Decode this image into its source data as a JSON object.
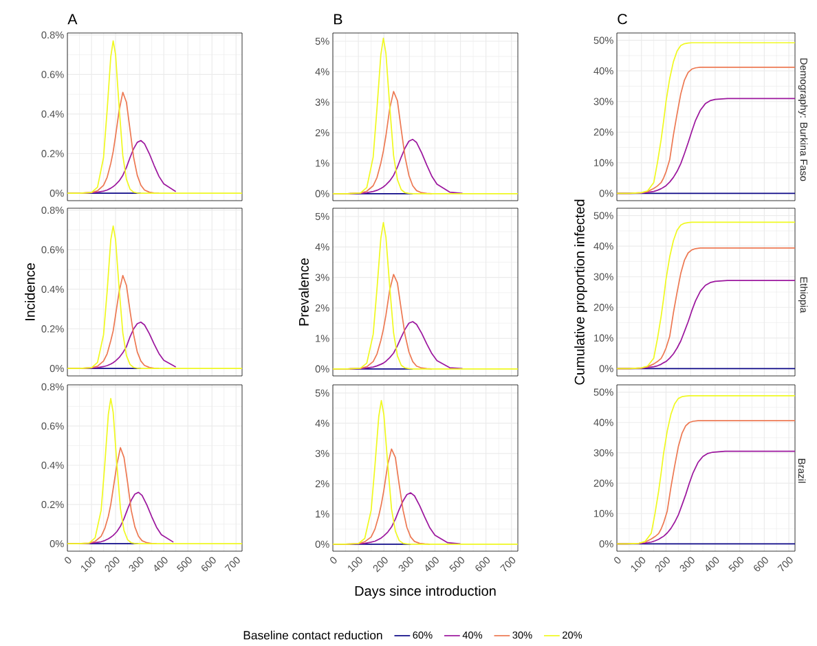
{
  "chart_data": [
    {
      "type": "line",
      "title": "A",
      "x": [
        0,
        50,
        100,
        125,
        150,
        165,
        180,
        190,
        200,
        215,
        230,
        245,
        260,
        275,
        290,
        305,
        320,
        340,
        360,
        380,
        400,
        450,
        500,
        600,
        725
      ],
      "xlim": [
        0,
        725
      ],
      "xticks": [
        0,
        100,
        200,
        300,
        400,
        500,
        600,
        700
      ],
      "ylim": [
        -0.038,
        0.81
      ],
      "yticks": [
        {
          "value": 0,
          "label": "0%"
        },
        {
          "value": 0.2,
          "label": "0.2%"
        },
        {
          "value": 0.4,
          "label": "0.4%"
        },
        {
          "value": 0.6,
          "label": "0.6%"
        },
        {
          "value": 0.8,
          "label": "0.8%"
        }
      ],
      "grid": true,
      "tick_labels": "y",
      "series": [
        {
          "color": "#0d0887",
          "values": [
            0,
            0,
            0,
            0,
            0,
            0,
            0,
            0,
            0,
            0,
            0,
            0,
            0,
            0,
            0,
            0,
            null,
            null,
            null,
            null,
            null,
            null,
            null,
            null,
            null
          ]
        },
        {
          "color": "#9c179e",
          "values": [
            0,
            0,
            0.002,
            0.005,
            0.01,
            0.016,
            0.025,
            0.033,
            0.043,
            0.062,
            0.09,
            0.13,
            0.18,
            0.225,
            0.257,
            0.266,
            0.25,
            0.2,
            0.14,
            0.085,
            0.047,
            0.008,
            null,
            null,
            null
          ]
        },
        {
          "color": "#ed7953",
          "values": [
            0,
            0,
            0.003,
            0.012,
            0.04,
            0.08,
            0.15,
            0.21,
            0.29,
            0.42,
            0.51,
            0.46,
            0.32,
            0.18,
            0.09,
            0.04,
            0.016,
            0.005,
            0.001,
            0,
            null,
            null,
            null,
            null,
            null
          ]
        },
        {
          "color": "#f0f921",
          "values": [
            0,
            0,
            0.003,
            0.03,
            0.18,
            0.42,
            0.69,
            0.77,
            0.7,
            0.43,
            0.19,
            0.07,
            0.02,
            0.005,
            0.001,
            0,
            0,
            0,
            0,
            0,
            0,
            0,
            0,
            0,
            0
          ]
        }
      ]
    },
    {
      "type": "line",
      "title": "B",
      "x": [
        0,
        58,
        108,
        133,
        158,
        173,
        188,
        198,
        208,
        223,
        238,
        253,
        268,
        283,
        298,
        313,
        328,
        348,
        368,
        388,
        408,
        458,
        508,
        608,
        725
      ],
      "xlim": [
        0,
        725
      ],
      "xticks": [
        0,
        100,
        200,
        300,
        400,
        500,
        600,
        700
      ],
      "ylim": [
        -0.23,
        5.27
      ],
      "yticks": [
        {
          "value": 0,
          "label": "0%"
        },
        {
          "value": 1,
          "label": "1%"
        },
        {
          "value": 2,
          "label": "2%"
        },
        {
          "value": 3,
          "label": "3%"
        },
        {
          "value": 4,
          "label": "4%"
        },
        {
          "value": 5,
          "label": "5%"
        }
      ],
      "grid": true,
      "tick_labels": "y",
      "series": [
        {
          "color": "#0d0887",
          "values": [
            0,
            0,
            0,
            0,
            0,
            0,
            0,
            0,
            0,
            0,
            0,
            0,
            0,
            0,
            0,
            0,
            null,
            null,
            null,
            null,
            null,
            null,
            null,
            null,
            null
          ]
        },
        {
          "color": "#9c179e",
          "values": [
            0,
            0,
            0.01,
            0.03,
            0.07,
            0.11,
            0.17,
            0.22,
            0.29,
            0.42,
            0.6,
            0.87,
            1.2,
            1.5,
            1.72,
            1.78,
            1.68,
            1.34,
            0.94,
            0.57,
            0.31,
            0.05,
            0.01,
            null,
            null
          ]
        },
        {
          "color": "#ed7953",
          "values": [
            0,
            0,
            0.02,
            0.08,
            0.26,
            0.53,
            1.0,
            1.4,
            1.9,
            2.8,
            3.35,
            3.05,
            2.1,
            1.2,
            0.6,
            0.26,
            0.1,
            0.03,
            0.01,
            0,
            null,
            null,
            null,
            null,
            null
          ]
        },
        {
          "color": "#f0f921",
          "values": [
            0,
            0,
            0.02,
            0.2,
            1.2,
            2.8,
            4.55,
            5.1,
            4.6,
            2.85,
            1.25,
            0.46,
            0.13,
            0.03,
            0.01,
            0,
            0,
            0,
            0,
            0,
            0,
            0,
            0,
            0,
            0
          ]
        }
      ]
    },
    {
      "type": "line",
      "title": "C",
      "y2label": "Demography: Burkina Faso",
      "x": [
        0,
        50,
        100,
        125,
        150,
        165,
        180,
        190,
        200,
        215,
        230,
        245,
        260,
        275,
        290,
        305,
        320,
        340,
        360,
        380,
        400,
        450,
        500,
        600,
        725
      ],
      "xlim": [
        0,
        725
      ],
      "xticks": [
        0,
        100,
        200,
        300,
        400,
        500,
        600,
        700
      ],
      "ylim": [
        -2.4,
        52.4
      ],
      "yticks": [
        {
          "value": 0,
          "label": "0%"
        },
        {
          "value": 10,
          "label": "10%"
        },
        {
          "value": 20,
          "label": "20%"
        },
        {
          "value": 30,
          "label": "30%"
        },
        {
          "value": 40,
          "label": "40%"
        },
        {
          "value": 50,
          "label": "50%"
        }
      ],
      "grid": true,
      "tick_labels": "y",
      "series": [
        {
          "color": "#0d0887",
          "values": [
            0,
            0,
            0,
            0,
            0,
            0,
            0,
            0,
            0,
            0,
            0,
            0,
            0,
            0,
            0,
            0,
            0,
            0,
            0,
            0,
            0,
            0,
            0,
            0,
            0
          ]
        },
        {
          "color": "#9c179e",
          "values": [
            0,
            0,
            0.1,
            0.3,
            0.6,
            1,
            1.5,
            2,
            2.5,
            3.7,
            5.2,
            7.2,
            9.7,
            13,
            16.5,
            20.3,
            23.8,
            27.2,
            29.3,
            30.3,
            30.7,
            31,
            31,
            31,
            31
          ]
        },
        {
          "color": "#ed7953",
          "values": [
            0,
            0,
            0.2,
            0.6,
            1.6,
            2.4,
            3.5,
            5,
            7,
            11,
            19,
            26,
            32.5,
            37,
            39.5,
            40.6,
            41,
            41.2,
            41.2,
            41.2,
            41.2,
            41.2,
            41.2,
            41.2,
            41.2
          ]
        },
        {
          "color": "#f0f921",
          "values": [
            0,
            0,
            0.2,
            0.8,
            3.5,
            10,
            17.5,
            23.5,
            30,
            37.5,
            43,
            46.5,
            48.3,
            48.9,
            49.1,
            49.2,
            49.2,
            49.2,
            49.2,
            49.2,
            49.2,
            49.2,
            49.2,
            49.2,
            49.2
          ]
        }
      ]
    },
    {
      "type": "line",
      "ylabel": "Incidence",
      "x": [
        0,
        50,
        100,
        125,
        150,
        165,
        180,
        190,
        200,
        215,
        230,
        245,
        260,
        275,
        290,
        305,
        320,
        340,
        360,
        380,
        400,
        450,
        500,
        600,
        725
      ],
      "xlim": [
        0,
        725
      ],
      "xticks": [
        0,
        100,
        200,
        300,
        400,
        500,
        600,
        700
      ],
      "ylim": [
        -0.038,
        0.81
      ],
      "yticks": [
        {
          "value": 0,
          "label": "0%"
        },
        {
          "value": 0.2,
          "label": "0.2%"
        },
        {
          "value": 0.4,
          "label": "0.4%"
        },
        {
          "value": 0.6,
          "label": "0.6%"
        },
        {
          "value": 0.8,
          "label": "0.8%"
        }
      ],
      "grid": true,
      "tick_labels": "y",
      "series": [
        {
          "color": "#0d0887",
          "values": [
            0,
            0,
            0,
            0,
            0,
            0,
            0,
            0,
            0,
            0,
            0,
            0,
            0,
            0,
            0,
            0,
            null,
            null,
            null,
            null,
            null,
            null,
            null,
            null,
            null
          ]
        },
        {
          "color": "#9c179e",
          "values": [
            0,
            0,
            0.002,
            0.004,
            0.009,
            0.014,
            0.022,
            0.029,
            0.038,
            0.055,
            0.079,
            0.11,
            0.16,
            0.2,
            0.226,
            0.234,
            0.22,
            0.176,
            0.123,
            0.075,
            0.041,
            0.007,
            null,
            null,
            null
          ]
        },
        {
          "color": "#ed7953",
          "values": [
            0,
            0,
            0.003,
            0.011,
            0.037,
            0.074,
            0.14,
            0.19,
            0.27,
            0.39,
            0.47,
            0.42,
            0.29,
            0.17,
            0.083,
            0.037,
            0.015,
            0.005,
            0.001,
            0,
            null,
            null,
            null,
            null,
            null
          ]
        },
        {
          "color": "#f0f921",
          "values": [
            0,
            0,
            0.003,
            0.03,
            0.17,
            0.39,
            0.65,
            0.72,
            0.65,
            0.4,
            0.18,
            0.065,
            0.02,
            0.005,
            0.001,
            0,
            0,
            0,
            0,
            0,
            0,
            0,
            0,
            0,
            0
          ]
        }
      ]
    },
    {
      "type": "line",
      "ylabel": "Prevalence",
      "x": [
        0,
        58,
        108,
        133,
        158,
        173,
        188,
        198,
        208,
        223,
        238,
        253,
        268,
        283,
        298,
        313,
        328,
        348,
        368,
        388,
        408,
        458,
        508,
        608,
        725
      ],
      "xlim": [
        0,
        725
      ],
      "xticks": [
        0,
        100,
        200,
        300,
        400,
        500,
        600,
        700
      ],
      "ylim": [
        -0.23,
        5.27
      ],
      "yticks": [
        {
          "value": 0,
          "label": "0%"
        },
        {
          "value": 1,
          "label": "1%"
        },
        {
          "value": 2,
          "label": "2%"
        },
        {
          "value": 3,
          "label": "3%"
        },
        {
          "value": 4,
          "label": "4%"
        },
        {
          "value": 5,
          "label": "5%"
        }
      ],
      "grid": true,
      "tick_labels": "y",
      "series": [
        {
          "color": "#0d0887",
          "values": [
            0,
            0,
            0,
            0,
            0,
            0,
            0,
            0,
            0,
            0,
            0,
            0,
            0,
            0,
            0,
            0,
            null,
            null,
            null,
            null,
            null,
            null,
            null,
            null,
            null
          ]
        },
        {
          "color": "#9c179e",
          "values": [
            0,
            0,
            0.01,
            0.03,
            0.06,
            0.1,
            0.15,
            0.19,
            0.25,
            0.37,
            0.52,
            0.76,
            1.04,
            1.3,
            1.5,
            1.55,
            1.46,
            1.17,
            0.82,
            0.5,
            0.27,
            0.04,
            0.01,
            null,
            null
          ]
        },
        {
          "color": "#ed7953",
          "values": [
            0,
            0,
            0.02,
            0.07,
            0.24,
            0.49,
            0.93,
            1.3,
            1.76,
            2.6,
            3.1,
            2.82,
            1.94,
            1.11,
            0.56,
            0.24,
            0.09,
            0.03,
            0.01,
            0,
            null,
            null,
            null,
            null,
            null
          ]
        },
        {
          "color": "#f0f921",
          "values": [
            0,
            0,
            0.02,
            0.19,
            1.13,
            2.63,
            4.28,
            4.8,
            4.32,
            2.68,
            1.18,
            0.43,
            0.12,
            0.03,
            0.01,
            0,
            0,
            0,
            0,
            0,
            0,
            0,
            0,
            0,
            0
          ]
        }
      ]
    },
    {
      "type": "line",
      "ylabel": "Cumulative proportion infected",
      "y2label": "Ethiopia",
      "x": [
        0,
        50,
        100,
        125,
        150,
        165,
        180,
        190,
        200,
        215,
        230,
        245,
        260,
        275,
        290,
        305,
        320,
        340,
        360,
        380,
        400,
        450,
        500,
        600,
        725
      ],
      "xlim": [
        0,
        725
      ],
      "xticks": [
        0,
        100,
        200,
        300,
        400,
        500,
        600,
        700
      ],
      "ylim": [
        -2.4,
        52.4
      ],
      "yticks": [
        {
          "value": 0,
          "label": "0%"
        },
        {
          "value": 10,
          "label": "10%"
        },
        {
          "value": 20,
          "label": "20%"
        },
        {
          "value": 30,
          "label": "30%"
        },
        {
          "value": 40,
          "label": "40%"
        },
        {
          "value": 50,
          "label": "50%"
        }
      ],
      "grid": true,
      "tick_labels": "y",
      "series": [
        {
          "color": "#0d0887",
          "values": [
            0,
            0,
            0,
            0,
            0,
            0,
            0,
            0,
            0,
            0,
            0,
            0,
            0,
            0,
            0,
            0,
            0,
            0,
            0,
            0,
            0,
            0,
            0,
            0,
            0
          ]
        },
        {
          "color": "#9c179e",
          "values": [
            0,
            0,
            0.1,
            0.3,
            0.6,
            0.9,
            1.4,
            1.9,
            2.3,
            3.4,
            4.8,
            6.7,
            9,
            12.1,
            15.3,
            18.9,
            22.1,
            25.3,
            27.2,
            28.1,
            28.5,
            28.8,
            28.8,
            28.8,
            28.8
          ]
        },
        {
          "color": "#ed7953",
          "values": [
            0,
            0,
            0.2,
            0.6,
            1.5,
            2.3,
            3.3,
            4.8,
            6.7,
            10.5,
            18.2,
            24.9,
            31.1,
            35.4,
            37.8,
            38.8,
            39.2,
            39.4,
            39.4,
            39.4,
            39.4,
            39.4,
            39.4,
            39.4,
            39.4
          ]
        },
        {
          "color": "#f0f921",
          "values": [
            0,
            0,
            0.2,
            0.8,
            3.4,
            9.7,
            17,
            22.8,
            29.2,
            36.5,
            41.8,
            45.2,
            46.9,
            47.5,
            47.7,
            47.8,
            47.8,
            47.8,
            47.8,
            47.8,
            47.8,
            47.8,
            47.8,
            47.8,
            47.8
          ]
        }
      ]
    },
    {
      "type": "line",
      "x": [
        0,
        40,
        90,
        115,
        140,
        155,
        170,
        180,
        190,
        205,
        220,
        235,
        250,
        265,
        280,
        295,
        310,
        330,
        350,
        370,
        390,
        440,
        490,
        590,
        725
      ],
      "xlim": [
        0,
        725
      ],
      "xticks": [
        0,
        100,
        200,
        300,
        400,
        500,
        600,
        700
      ],
      "ylim": [
        -0.038,
        0.81
      ],
      "yticks": [
        {
          "value": 0,
          "label": "0%"
        },
        {
          "value": 0.2,
          "label": "0.2%"
        },
        {
          "value": 0.4,
          "label": "0.4%"
        },
        {
          "value": 0.6,
          "label": "0.6%"
        },
        {
          "value": 0.8,
          "label": "0.8%"
        }
      ],
      "grid": true,
      "series": [
        {
          "color": "#0d0887",
          "values": [
            0,
            0,
            0,
            0,
            0,
            0,
            0,
            0,
            0,
            0,
            0,
            0,
            0,
            0,
            0,
            0,
            null,
            null,
            null,
            null,
            null,
            null,
            null,
            null,
            null
          ]
        },
        {
          "color": "#9c179e",
          "values": [
            0,
            0,
            0.002,
            0.005,
            0.01,
            0.016,
            0.025,
            0.033,
            0.042,
            0.061,
            0.089,
            0.128,
            0.177,
            0.222,
            0.253,
            0.262,
            0.246,
            0.197,
            0.138,
            0.084,
            0.046,
            0.008,
            null,
            null,
            null
          ]
        },
        {
          "color": "#ed7953",
          "values": [
            0,
            0,
            0.003,
            0.012,
            0.038,
            0.077,
            0.14,
            0.2,
            0.28,
            0.4,
            0.49,
            0.44,
            0.31,
            0.17,
            0.086,
            0.038,
            0.015,
            0.005,
            0.001,
            0,
            null,
            null,
            null,
            null,
            null
          ]
        },
        {
          "color": "#f0f921",
          "values": [
            0,
            0,
            0.003,
            0.03,
            0.17,
            0.4,
            0.66,
            0.74,
            0.67,
            0.41,
            0.18,
            0.067,
            0.02,
            0.005,
            0.001,
            0,
            0,
            0,
            0,
            0,
            0,
            0,
            0,
            0,
            0
          ]
        }
      ]
    },
    {
      "type": "line",
      "xlabel": "Days since introduction",
      "x": [
        0,
        50,
        100,
        125,
        150,
        165,
        180,
        190,
        200,
        215,
        230,
        245,
        260,
        275,
        290,
        305,
        320,
        340,
        360,
        380,
        400,
        450,
        500,
        600,
        725
      ],
      "xlim": [
        0,
        725
      ],
      "xticks": [
        0,
        100,
        200,
        300,
        400,
        500,
        600,
        700
      ],
      "ylim": [
        -0.23,
        5.27
      ],
      "yticks": [
        {
          "value": 0,
          "label": "0%"
        },
        {
          "value": 1,
          "label": "1%"
        },
        {
          "value": 2,
          "label": "2%"
        },
        {
          "value": 3,
          "label": "3%"
        },
        {
          "value": 4,
          "label": "4%"
        },
        {
          "value": 5,
          "label": "5%"
        }
      ],
      "grid": true,
      "series": [
        {
          "color": "#0d0887",
          "values": [
            0,
            0,
            0,
            0,
            0,
            0,
            0,
            0,
            0,
            0,
            0,
            0,
            0,
            0,
            0,
            0,
            null,
            null,
            null,
            null,
            null,
            null,
            null,
            null,
            null
          ]
        },
        {
          "color": "#9c179e",
          "values": [
            0,
            0,
            0.01,
            0.03,
            0.07,
            0.1,
            0.16,
            0.21,
            0.28,
            0.4,
            0.57,
            0.83,
            1.15,
            1.43,
            1.64,
            1.7,
            1.6,
            1.28,
            0.9,
            0.54,
            0.3,
            0.05,
            0.01,
            null,
            null
          ]
        },
        {
          "color": "#ed7953",
          "values": [
            0,
            0,
            0.02,
            0.08,
            0.24,
            0.5,
            0.94,
            1.32,
            1.79,
            2.63,
            3.15,
            2.87,
            1.97,
            1.13,
            0.56,
            0.24,
            0.09,
            0.03,
            0.01,
            0,
            null,
            null,
            null,
            null,
            null
          ]
        },
        {
          "color": "#f0f921",
          "values": [
            0,
            0,
            0.02,
            0.19,
            1.12,
            2.6,
            4.23,
            4.75,
            4.28,
            2.65,
            1.16,
            0.43,
            0.12,
            0.03,
            0.01,
            0,
            0,
            0,
            0,
            0,
            0,
            0,
            0,
            0,
            0
          ]
        }
      ]
    },
    {
      "type": "line",
      "y2label": "Brazil",
      "legend": "bottom",
      "legend_title": "Baseline contact reduction",
      "x": [
        0,
        40,
        90,
        115,
        140,
        155,
        170,
        180,
        190,
        205,
        220,
        235,
        250,
        265,
        280,
        295,
        310,
        330,
        350,
        370,
        390,
        440,
        490,
        590,
        725
      ],
      "xlim": [
        0,
        725
      ],
      "xticks": [
        0,
        100,
        200,
        300,
        400,
        500,
        600,
        700
      ],
      "ylim": [
        -2.4,
        52.4
      ],
      "yticks": [
        {
          "value": 0,
          "label": "0%"
        },
        {
          "value": 10,
          "label": "10%"
        },
        {
          "value": 20,
          "label": "20%"
        },
        {
          "value": 30,
          "label": "30%"
        },
        {
          "value": 40,
          "label": "40%"
        },
        {
          "value": 50,
          "label": "50%"
        }
      ],
      "grid": true,
      "series": [
        {
          "name": "60%",
          "color": "#0d0887",
          "values": [
            0,
            0,
            0,
            0,
            0,
            0,
            0,
            0,
            0,
            0,
            0,
            0,
            0,
            0,
            0,
            0,
            0,
            0,
            0,
            0,
            0,
            0,
            0,
            0,
            0
          ]
        },
        {
          "name": "40%",
          "color": "#9c179e",
          "values": [
            0,
            0,
            0.1,
            0.3,
            0.6,
            1,
            1.5,
            2,
            2.5,
            3.6,
            5.1,
            7.1,
            9.5,
            12.8,
            16.2,
            20,
            23.4,
            26.8,
            28.8,
            29.8,
            30.2,
            30.5,
            30.5,
            30.5,
            30.5
          ]
        },
        {
          "name": "30%",
          "color": "#ed7953",
          "values": [
            0,
            0,
            0.2,
            0.6,
            1.6,
            2.4,
            3.4,
            4.9,
            6.9,
            10.8,
            18.7,
            25.6,
            32,
            36.4,
            38.9,
            40,
            40.4,
            40.6,
            40.6,
            40.6,
            40.6,
            40.6,
            40.6,
            40.6,
            40.6
          ]
        },
        {
          "name": "20%",
          "color": "#f0f921",
          "values": [
            0,
            0,
            0.2,
            0.8,
            3.5,
            9.9,
            17.4,
            23.3,
            29.8,
            37.2,
            42.7,
            46.1,
            47.9,
            48.5,
            48.7,
            48.8,
            48.8,
            48.8,
            48.8,
            48.8,
            48.8,
            48.8,
            48.8,
            48.8,
            48.8
          ]
        }
      ]
    }
  ]
}
